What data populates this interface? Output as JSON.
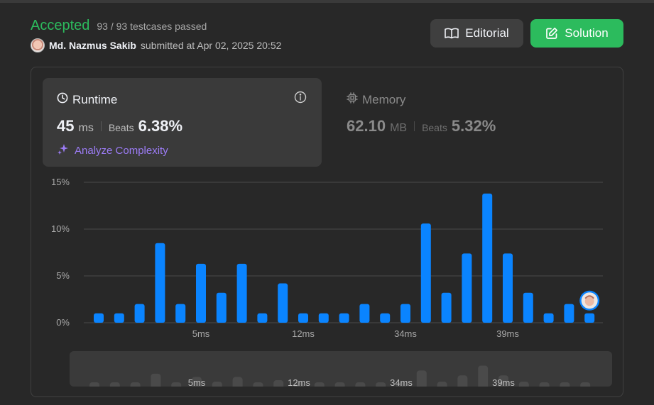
{
  "header": {
    "status": "Accepted",
    "testcases": "93 / 93 testcases passed",
    "submitter_name": "Md. Nazmus Sakib",
    "submitted_at": "submitted at Apr 02, 2025 20:52",
    "editorial_label": "Editorial",
    "solution_label": "Solution"
  },
  "runtime": {
    "title": "Runtime",
    "value": "45",
    "unit": "ms",
    "beats_label": "Beats",
    "beats_value": "6.38%",
    "analyze_label": "Analyze Complexity"
  },
  "memory": {
    "title": "Memory",
    "value": "62.10",
    "unit": "MB",
    "beats_label": "Beats",
    "beats_value": "5.32%"
  },
  "colors": {
    "accepted": "#2cbb5d",
    "bar": "#0a84ff",
    "overview_bar": "#4a4a4a",
    "analyze": "#9c7cf6"
  },
  "icons": {
    "editorial": "book-icon",
    "solution": "edit-icon",
    "runtime": "clock-icon",
    "memory": "chip-icon",
    "info": "info-icon",
    "analyze": "sparkle-icon"
  },
  "chart_data": {
    "type": "bar",
    "ylim": [
      0,
      15
    ],
    "y_ticks": [
      "0%",
      "5%",
      "10%",
      "15%"
    ],
    "y_tick_values": [
      0,
      5,
      10,
      15
    ],
    "values": [
      1,
      1,
      2,
      8.5,
      2,
      6.3,
      3.2,
      6.3,
      1,
      4.2,
      1,
      1,
      1,
      2,
      1,
      2,
      10.6,
      3.2,
      7.4,
      13.8,
      7.4,
      3.2,
      1,
      2,
      1
    ],
    "x_tick_labels": [
      {
        "index": 5,
        "label": "5ms"
      },
      {
        "index": 10,
        "label": "12ms"
      },
      {
        "index": 15,
        "label": "34ms"
      },
      {
        "index": 20,
        "label": "39ms"
      }
    ],
    "user_marker_index": 24,
    "grid": true
  }
}
